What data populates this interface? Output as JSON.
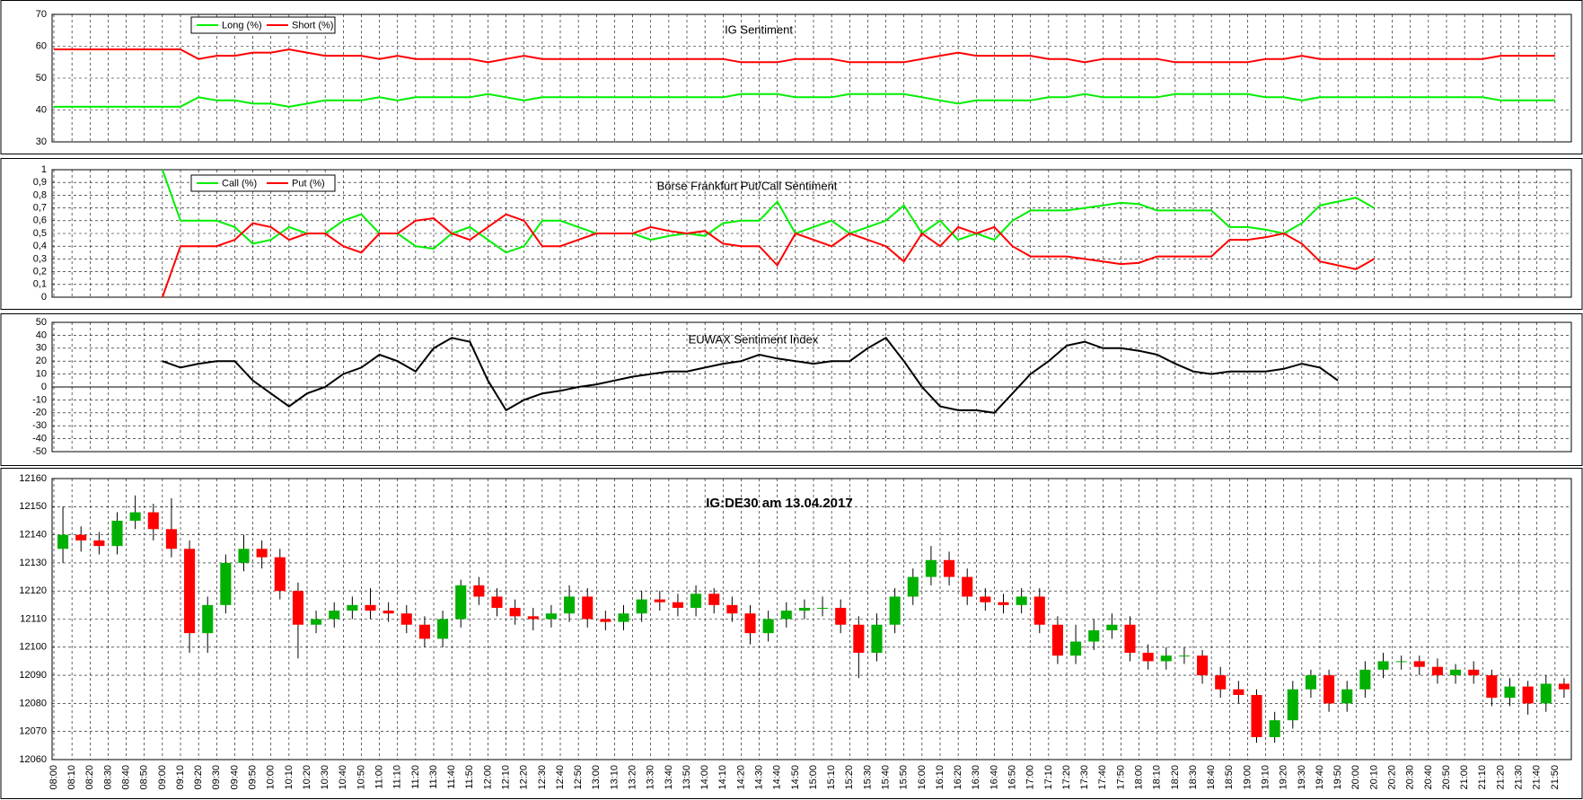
{
  "chart_data": [
    {
      "type": "line",
      "title": "IG Sentiment",
      "ylim": [
        30,
        70
      ],
      "yticks": [
        30,
        40,
        50,
        60,
        70
      ],
      "grid": true,
      "legend": "upper left",
      "series": [
        {
          "name": "Long (%)",
          "color": "#00ee00",
          "values": [
            41,
            41,
            41,
            41,
            41,
            41,
            41,
            41,
            44,
            43,
            43,
            42,
            42,
            41,
            42,
            43,
            43,
            43,
            44,
            43,
            44,
            44,
            44,
            44,
            45,
            44,
            43,
            44,
            44,
            44,
            44,
            44,
            44,
            44,
            44,
            44,
            44,
            44,
            45,
            45,
            45,
            44,
            44,
            44,
            45,
            45,
            45,
            45,
            44,
            43,
            42,
            43,
            43,
            43,
            43,
            44,
            44,
            45,
            44,
            44,
            44,
            44,
            45,
            45,
            45,
            45,
            45,
            44,
            44,
            43,
            44,
            44,
            44,
            44,
            44,
            44,
            44,
            44,
            44,
            44,
            43,
            43,
            43,
            43
          ]
        },
        {
          "name": "Short (%)",
          "color": "#ff0000",
          "values": [
            59,
            59,
            59,
            59,
            59,
            59,
            59,
            59,
            56,
            57,
            57,
            58,
            58,
            59,
            58,
            57,
            57,
            57,
            56,
            57,
            56,
            56,
            56,
            56,
            55,
            56,
            57,
            56,
            56,
            56,
            56,
            56,
            56,
            56,
            56,
            56,
            56,
            56,
            55,
            55,
            55,
            56,
            56,
            56,
            55,
            55,
            55,
            55,
            56,
            57,
            58,
            57,
            57,
            57,
            57,
            56,
            56,
            55,
            56,
            56,
            56,
            56,
            55,
            55,
            55,
            55,
            55,
            56,
            56,
            57,
            56,
            56,
            56,
            56,
            56,
            56,
            56,
            56,
            56,
            56,
            57,
            57,
            57,
            57
          ]
        }
      ]
    },
    {
      "type": "line",
      "title": "Börse Frankfurt Put/Call Sentiment",
      "ylim": [
        0,
        1
      ],
      "yticks": [
        0,
        {
          "value": 0.1,
          "label": "0,1"
        },
        {
          "value": 0.2,
          "label": "0,2"
        },
        {
          "value": 0.3,
          "label": "0,3"
        },
        {
          "value": 0.4,
          "label": "0,4"
        },
        {
          "value": 0.5,
          "label": "0,5"
        },
        {
          "value": 0.6,
          "label": "0,6"
        },
        {
          "value": 0.7,
          "label": "0,7"
        },
        {
          "value": 0.8,
          "label": "0,8"
        },
        {
          "value": 0.9,
          "label": "0,9"
        },
        1
      ],
      "grid": true,
      "legend": "upper left",
      "series": [
        {
          "name": "Call (%)",
          "color": "#00ee00",
          "values": [
            null,
            null,
            null,
            null,
            null,
            null,
            1,
            0.6,
            0.6,
            0.6,
            0.55,
            0.42,
            0.45,
            0.55,
            0.5,
            0.5,
            0.6,
            0.65,
            0.5,
            0.5,
            0.4,
            0.38,
            0.5,
            0.55,
            0.45,
            0.35,
            0.4,
            0.6,
            0.6,
            0.55,
            0.5,
            0.5,
            0.5,
            0.45,
            0.48,
            0.5,
            0.48,
            0.58,
            0.6,
            0.6,
            0.75,
            0.5,
            0.55,
            0.6,
            0.5,
            0.55,
            0.6,
            0.72,
            0.5,
            0.6,
            0.45,
            0.5,
            0.45,
            0.6,
            0.68,
            0.68,
            0.68,
            0.7,
            0.72,
            0.74,
            0.73,
            0.68,
            0.68,
            0.68,
            0.68,
            0.55,
            0.55,
            0.53,
            0.5,
            0.58,
            0.72,
            0.75,
            0.78,
            0.7,
            null,
            null,
            null,
            null,
            null,
            null,
            null,
            null,
            null,
            null
          ]
        },
        {
          "name": "Put (%)",
          "color": "#ff0000",
          "values": [
            null,
            null,
            null,
            null,
            null,
            null,
            0,
            0.4,
            0.4,
            0.4,
            0.45,
            0.58,
            0.55,
            0.45,
            0.5,
            0.5,
            0.4,
            0.35,
            0.5,
            0.5,
            0.6,
            0.62,
            0.5,
            0.45,
            0.55,
            0.65,
            0.6,
            0.4,
            0.4,
            0.45,
            0.5,
            0.5,
            0.5,
            0.55,
            0.52,
            0.5,
            0.52,
            0.42,
            0.4,
            0.4,
            0.25,
            0.5,
            0.45,
            0.4,
            0.5,
            0.45,
            0.4,
            0.28,
            0.5,
            0.4,
            0.55,
            0.5,
            0.55,
            0.4,
            0.32,
            0.32,
            0.32,
            0.3,
            0.28,
            0.26,
            0.27,
            0.32,
            0.32,
            0.32,
            0.32,
            0.45,
            0.45,
            0.47,
            0.5,
            0.42,
            0.28,
            0.25,
            0.22,
            0.3,
            null,
            null,
            null,
            null,
            null,
            null,
            null,
            null,
            null,
            null
          ]
        }
      ]
    },
    {
      "type": "line",
      "title": "EUWAX Sentiment Index",
      "ylim": [
        -50,
        50
      ],
      "yticks": [
        -50,
        -40,
        -30,
        -20,
        -10,
        0,
        10,
        20,
        30,
        40,
        50
      ],
      "grid": true,
      "series": [
        {
          "color": "#000000",
          "values": [
            null,
            null,
            null,
            null,
            null,
            null,
            20,
            15,
            18,
            20,
            20,
            5,
            -5,
            -15,
            -5,
            0,
            10,
            15,
            25,
            20,
            12,
            30,
            38,
            35,
            5,
            -18,
            -10,
            -5,
            -3,
            0,
            2,
            5,
            8,
            10,
            12,
            12,
            15,
            18,
            20,
            25,
            22,
            20,
            18,
            20,
            20,
            30,
            38,
            20,
            0,
            -15,
            -18,
            -18,
            -20,
            -5,
            10,
            20,
            32,
            35,
            30,
            30,
            28,
            25,
            18,
            12,
            10,
            12,
            12,
            12,
            14,
            18,
            15,
            5,
            null,
            null,
            null,
            null,
            null,
            null,
            null,
            null,
            null,
            null,
            null,
            null
          ]
        }
      ]
    },
    {
      "type": "candlestick",
      "title": "IG:DE30 am 13.04.2017",
      "ylim": [
        12060,
        12160
      ],
      "yticks": [
        12060,
        12070,
        12080,
        12090,
        12100,
        12110,
        12120,
        12130,
        12140,
        12150,
        12160
      ],
      "grid": true,
      "up_color": "#00b000",
      "down_color": "#ff0000",
      "x": [
        "08:00",
        "08:10",
        "08:20",
        "08:30",
        "08:40",
        "08:50",
        "09:00",
        "09:10",
        "09:20",
        "09:30",
        "09:40",
        "09:50",
        "10:00",
        "10:10",
        "10:20",
        "10:30",
        "10:40",
        "10:50",
        "11:00",
        "11:10",
        "11:20",
        "11:30",
        "11:40",
        "11:50",
        "12:00",
        "12:10",
        "12:20",
        "12:30",
        "12:40",
        "12:50",
        "13:00",
        "13:10",
        "13:20",
        "13:30",
        "13:40",
        "13:50",
        "14:00",
        "14:10",
        "14:20",
        "14:30",
        "14:40",
        "14:50",
        "15:00",
        "15:10",
        "15:20",
        "15:30",
        "15:40",
        "15:50",
        "16:00",
        "16:10",
        "16:20",
        "16:30",
        "16:40",
        "16:50",
        "17:00",
        "17:10",
        "17:20",
        "17:30",
        "17:40",
        "17:50",
        "18:00",
        "18:10",
        "18:20",
        "18:30",
        "18:40",
        "18:50",
        "19:00",
        "19:10",
        "19:20",
        "19:30",
        "19:40",
        "19:50",
        "20:00",
        "20:10",
        "20:20",
        "20:30",
        "20:40",
        "20:50",
        "21:00",
        "21:10",
        "21:20",
        "21:30",
        "21:40",
        "21:50"
      ],
      "open": [
        12135,
        12140,
        12138,
        12136,
        12145,
        12148,
        12142,
        12135,
        12105,
        12115,
        12130,
        12135,
        12132,
        12120,
        12108,
        12110,
        12113,
        12115,
        12113,
        12112,
        12108,
        12103,
        12110,
        12122,
        12118,
        12114,
        12111,
        12110,
        12112,
        12118,
        12110,
        12109,
        12112,
        12117,
        12116,
        12114,
        12119,
        12115,
        12112,
        12105,
        12110,
        12113,
        12114,
        12114,
        12108,
        12098,
        12108,
        12118,
        12125,
        12131,
        12125,
        12118,
        12116,
        12115,
        12118,
        12108,
        12097,
        12102,
        12106,
        12108,
        12098,
        12095,
        12097,
        12097,
        12090,
        12085,
        12083,
        12068,
        12074,
        12085,
        12090,
        12080,
        12085,
        12092,
        12095,
        12095,
        12093,
        12090,
        12092,
        12090,
        12082,
        12086,
        12080,
        12087
      ],
      "high": [
        12150,
        12143,
        12141,
        12148,
        12154,
        12151,
        12153,
        12138,
        12118,
        12133,
        12140,
        12138,
        12135,
        12123,
        12113,
        12116,
        12118,
        12121,
        12116,
        12115,
        12111,
        12113,
        12124,
        12125,
        12121,
        12117,
        12114,
        12115,
        12122,
        12121,
        12113,
        12115,
        12120,
        12120,
        12119,
        12122,
        12121,
        12118,
        12115,
        12113,
        12116,
        12117,
        12118,
        12117,
        12111,
        12112,
        12121,
        12128,
        12136,
        12134,
        12128,
        12121,
        12119,
        12121,
        12121,
        12111,
        12108,
        12110,
        12112,
        12111,
        12101,
        12100,
        12100,
        12099,
        12093,
        12088,
        12085,
        12077,
        12088,
        12092,
        12092,
        12088,
        12095,
        12098,
        12097,
        12097,
        12096,
        12094,
        12095,
        12092,
        12089,
        12088,
        12090,
        12089
      ],
      "low": [
        12130,
        12134,
        12133,
        12133,
        12142,
        12138,
        12132,
        12098,
        12098,
        12112,
        12127,
        12128,
        12117,
        12096,
        12105,
        12107,
        12110,
        12110,
        12109,
        12105,
        12100,
        12100,
        12107,
        12115,
        12111,
        12108,
        12106,
        12107,
        12109,
        12107,
        12106,
        12106,
        12109,
        12113,
        12111,
        12111,
        12112,
        12109,
        12101,
        12102,
        12107,
        12110,
        12111,
        12105,
        12089,
        12095,
        12105,
        12115,
        12122,
        12122,
        12115,
        12113,
        12112,
        12112,
        12105,
        12094,
        12094,
        12099,
        12103,
        12095,
        12092,
        12092,
        12094,
        12087,
        12082,
        12080,
        12066,
        12066,
        12071,
        12082,
        12077,
        12077,
        12082,
        12089,
        12092,
        12090,
        12087,
        12087,
        12087,
        12079,
        12079,
        12076,
        12077,
        12082
      ],
      "close": [
        12140,
        12138,
        12136,
        12145,
        12148,
        12142,
        12135,
        12105,
        12115,
        12130,
        12135,
        12132,
        12120,
        12108,
        12110,
        12113,
        12115,
        12113,
        12112,
        12108,
        12103,
        12110,
        12122,
        12118,
        12114,
        12111,
        12110,
        12112,
        12118,
        12110,
        12109,
        12112,
        12117,
        12116,
        12114,
        12119,
        12115,
        12112,
        12105,
        12110,
        12113,
        12114,
        12114,
        12108,
        12098,
        12108,
        12118,
        12125,
        12131,
        12125,
        12118,
        12116,
        12115,
        12118,
        12108,
        12097,
        12102,
        12106,
        12108,
        12098,
        12095,
        12097,
        12097,
        12090,
        12085,
        12083,
        12068,
        12074,
        12085,
        12090,
        12080,
        12085,
        12092,
        12095,
        12095,
        12093,
        12090,
        12092,
        12090,
        12082,
        12086,
        12080,
        12087,
        12085
      ]
    }
  ]
}
